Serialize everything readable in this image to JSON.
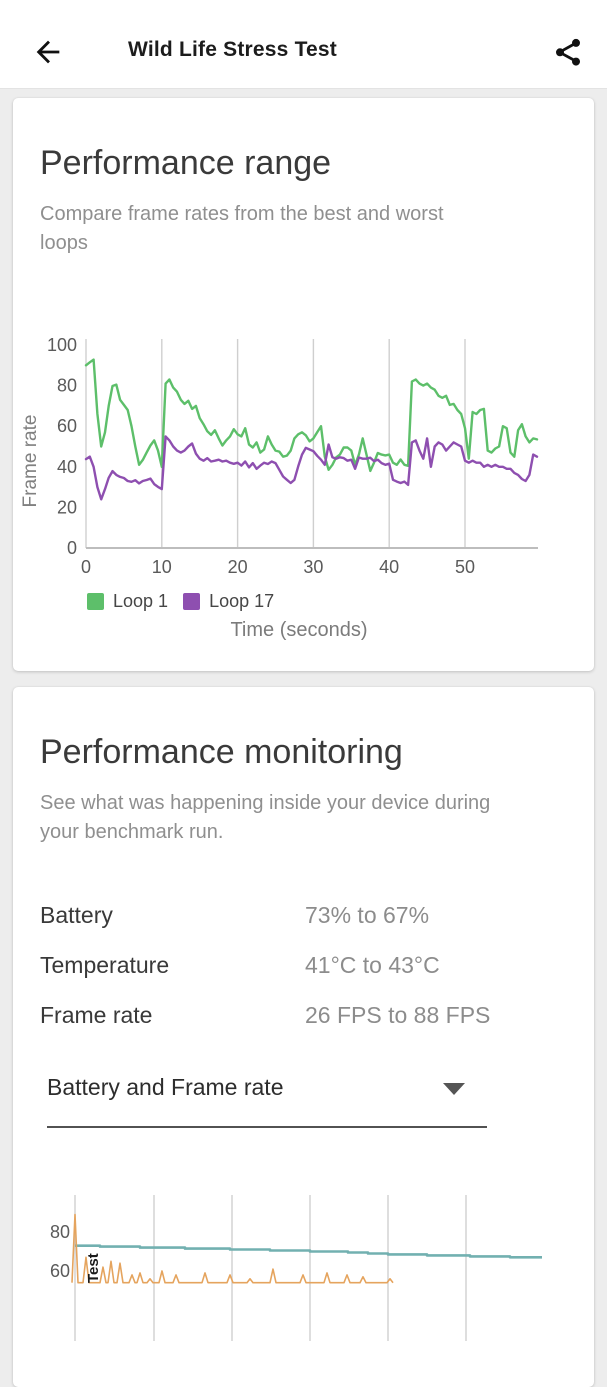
{
  "app_bar": {
    "title": "Wild Life Stress Test"
  },
  "performance_range": {
    "title": "Performance range",
    "subtitle": "Compare frame rates from the best and worst loops"
  },
  "performance_monitoring": {
    "title": "Performance monitoring",
    "subtitle": "See what was happening inside your device during your benchmark run.",
    "rows": [
      {
        "label": "Battery",
        "value": "73% to 67%"
      },
      {
        "label": "Temperature",
        "value": "41°C to 43°C"
      },
      {
        "label": "Frame rate",
        "value": "26 FPS to 88 FPS"
      }
    ],
    "dropdown": {
      "selected": "Battery and Frame rate"
    }
  },
  "colors": {
    "loop1_green": "#5dbf6a",
    "loop17_purple": "#8e4fb0",
    "battery_teal": "#72b0b0",
    "framerate_orange": "#e5a45e",
    "accent_text": "#1c1c1c"
  },
  "chart_data": [
    {
      "type": "line",
      "name": "performance-range-chart",
      "xlabel": "Time (seconds)",
      "ylabel": "Frame rate",
      "x_ticks": [
        0,
        10,
        20,
        30,
        40,
        50
      ],
      "y_ticks": [
        0,
        20,
        40,
        60,
        80,
        100
      ],
      "ylim": [
        0,
        100
      ],
      "xlim": [
        0,
        60
      ],
      "grid": "vertical",
      "legend_position": "bottom",
      "x_step": 0.5,
      "series": [
        {
          "name": "Loop 1",
          "color": "#5dbf6a",
          "values": [
            90,
            91.5,
            92.8,
            66,
            50,
            57,
            70,
            79.8,
            80.5,
            73,
            70.5,
            68,
            60,
            50,
            41,
            43.4,
            47,
            50.5,
            53,
            48,
            40,
            81,
            83,
            79,
            77,
            73,
            71,
            72.5,
            68.5,
            70,
            64,
            61,
            57.5,
            55.7,
            58,
            54,
            50.5,
            53,
            55,
            58.5,
            56,
            55,
            59,
            51,
            49.5,
            52,
            47,
            48.5,
            55,
            51,
            48,
            47.5,
            45,
            45.5,
            48,
            54,
            56,
            57,
            55.5,
            52.5,
            54,
            57,
            60,
            45,
            38.5,
            41,
            44.6,
            46,
            49.5,
            49.5,
            48,
            41,
            46,
            54,
            46,
            38,
            42,
            46.8,
            46,
            45.6,
            46,
            42,
            41,
            43.6,
            41,
            40.5,
            82,
            83,
            81,
            80,
            81,
            79,
            78,
            75,
            74,
            75,
            70.5,
            71,
            68,
            66,
            59,
            44,
            67,
            66,
            68,
            68.5,
            48,
            47,
            49,
            50,
            60,
            59,
            47,
            45,
            58,
            61,
            55,
            52,
            54,
            53.5
          ]
        },
        {
          "name": "Loop 17",
          "color": "#8e4fb0",
          "values": [
            43.8,
            45,
            40,
            30,
            24,
            29,
            34.6,
            37.9,
            36,
            35,
            34.5,
            33,
            32.6,
            33.4,
            31.8,
            33,
            33.5,
            34.2,
            31.5,
            30.1,
            29,
            55,
            53,
            50,
            48,
            47,
            48,
            50,
            51.5,
            46.5,
            44,
            43,
            44.3,
            42.6,
            43,
            43.5,
            42.6,
            43,
            42,
            41.5,
            42,
            40.6,
            42.6,
            39.7,
            41.8,
            39,
            40.6,
            42,
            41.4,
            42.6,
            41.8,
            38.5,
            35.2,
            33.6,
            32,
            33.6,
            40.2,
            46,
            49.3,
            48.5,
            47.7,
            45.4,
            43.5,
            41,
            51,
            44.7,
            44,
            44.7,
            44.3,
            43,
            43.5,
            39,
            44.6,
            44,
            44,
            44.5,
            42.8,
            43.5,
            41.8,
            41,
            41.6,
            33.6,
            32.7,
            32,
            32.7,
            31.1,
            52,
            53,
            48,
            44,
            54,
            40,
            50,
            52,
            51,
            48,
            50,
            52,
            51,
            50,
            43,
            42,
            43,
            42,
            42,
            40,
            41,
            40,
            41,
            40,
            40,
            39,
            39,
            37,
            36,
            34,
            33,
            36,
            46,
            45
          ]
        }
      ]
    },
    {
      "type": "line",
      "name": "battery-and-frame-rate-chart",
      "visible_y_ticks": [
        80,
        60
      ],
      "x_gridlines": [
        75,
        154,
        232,
        310,
        388,
        466
      ],
      "annotations": [
        {
          "text": "Test",
          "x": 99,
          "rotated": true
        }
      ],
      "series": [
        {
          "name": "Battery",
          "color": "#72b0b0",
          "style": "step",
          "points": [
            [
              75,
              73
            ],
            [
              100,
              72.5
            ],
            [
              140,
              72
            ],
            [
              185,
              71.5
            ],
            [
              230,
              71
            ],
            [
              270,
              70.5
            ],
            [
              310,
              70
            ],
            [
              348,
              69.5
            ],
            [
              368,
              69
            ],
            [
              388,
              68.5
            ],
            [
              427,
              68
            ],
            [
              470,
              67.5
            ],
            [
              510,
              67
            ],
            [
              542,
              67
            ]
          ]
        },
        {
          "name": "Frame rate",
          "color": "#e5a45e",
          "style": "spikes",
          "baseline": 54,
          "spikes": [
            [
              75,
              89
            ],
            [
              86,
              67
            ],
            [
              103,
              62
            ],
            [
              111,
              65
            ],
            [
              120,
              64
            ],
            [
              132,
              58
            ],
            [
              140,
              59
            ],
            [
              150,
              56
            ],
            [
              162,
              60
            ],
            [
              176,
              58
            ],
            [
              205,
              59
            ],
            [
              230,
              58
            ],
            [
              250,
              56
            ],
            [
              273,
              61
            ],
            [
              303,
              58
            ],
            [
              327,
              59
            ],
            [
              347,
              58
            ],
            [
              363,
              57
            ],
            [
              390,
              56
            ]
          ]
        }
      ]
    }
  ]
}
